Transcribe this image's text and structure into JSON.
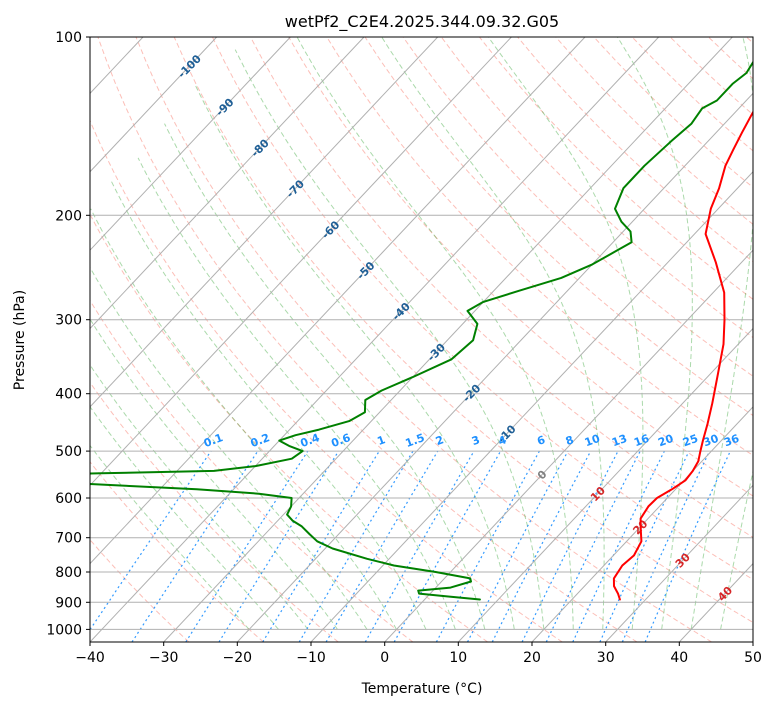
{
  "chart_data": {
    "type": "line",
    "title": "wetPf2_C2E4.2025.344.09.32.G05",
    "xlabel": "Temperature (°C)",
    "ylabel": "Pressure (hPa)",
    "xlim": [
      -40,
      50
    ],
    "ylim": [
      1050,
      100
    ],
    "y_scale": "log",
    "grid": true,
    "x_ticks": [
      "−40",
      "−30",
      "−20",
      "−10",
      "0",
      "10",
      "20",
      "30",
      "40",
      "50"
    ],
    "y_ticks": [
      "1000",
      "900",
      "800",
      "700",
      "600",
      "500",
      "400",
      "300",
      "200",
      "100"
    ],
    "series": [
      {
        "role": "temperature",
        "color": "#ff0000",
        "points": [
          [
            26.5,
            890
          ],
          [
            25.5,
            870
          ],
          [
            24.0,
            845
          ],
          [
            23.0,
            820
          ],
          [
            22.5,
            780
          ],
          [
            22.8,
            750
          ],
          [
            22.0,
            710
          ],
          [
            20.5,
            680
          ],
          [
            19.0,
            650
          ],
          [
            18.5,
            620
          ],
          [
            18.6,
            600
          ],
          [
            19.5,
            580
          ],
          [
            20.2,
            560
          ],
          [
            20.0,
            540
          ],
          [
            19.5,
            520
          ],
          [
            18.5,
            500
          ],
          [
            17.5,
            480
          ],
          [
            16.0,
            450
          ],
          [
            14.0,
            415
          ],
          [
            11.0,
            370
          ],
          [
            8.0,
            330
          ],
          [
            5.0,
            300
          ],
          [
            1.5,
            270
          ],
          [
            -3.5,
            240
          ],
          [
            -8.5,
            215
          ],
          [
            -11.0,
            195
          ],
          [
            -12.5,
            180
          ],
          [
            -14.5,
            165
          ],
          [
            -15.5,
            155
          ],
          [
            -16.5,
            145
          ],
          [
            -17.5,
            135
          ],
          [
            -18.5,
            125
          ],
          [
            -19.5,
            118
          ],
          [
            -20.5,
            110
          ],
          [
            -21.5,
            104
          ],
          [
            -22.0,
            100
          ]
        ]
      },
      {
        "role": "dewpoint",
        "color": "#008000",
        "points": [
          [
            7.5,
            890
          ],
          [
            3.0,
            880
          ],
          [
            -1.5,
            870
          ],
          [
            -2.0,
            860
          ],
          [
            0.0,
            855
          ],
          [
            2.0,
            850
          ],
          [
            4.0,
            830
          ],
          [
            3.5,
            820
          ],
          [
            -2.0,
            800
          ],
          [
            -8.5,
            780
          ],
          [
            -13.0,
            760
          ],
          [
            -19.0,
            730
          ],
          [
            -22.0,
            710
          ],
          [
            -24.0,
            690
          ],
          [
            -26.0,
            670
          ],
          [
            -28.0,
            655
          ],
          [
            -29.5,
            640
          ],
          [
            -30.0,
            620
          ],
          [
            -31.0,
            600
          ],
          [
            -36.0,
            590
          ],
          [
            -45.0,
            580
          ],
          [
            -58.0,
            570
          ],
          [
            -70.0,
            560
          ],
          [
            -75.0,
            550
          ],
          [
            -60.0,
            545
          ],
          [
            -45.0,
            540
          ],
          [
            -40.0,
            530
          ],
          [
            -36.0,
            515
          ],
          [
            -35.5,
            500
          ],
          [
            -38.0,
            490
          ],
          [
            -40.0,
            480
          ],
          [
            -38.5,
            470
          ],
          [
            -36.0,
            460
          ],
          [
            -33.0,
            445
          ],
          [
            -32.0,
            430
          ],
          [
            -33.5,
            410
          ],
          [
            -32.5,
            395
          ],
          [
            -30.0,
            375
          ],
          [
            -27.0,
            350
          ],
          [
            -26.5,
            325
          ],
          [
            -28.0,
            305
          ],
          [
            -31.0,
            290
          ],
          [
            -30.0,
            280
          ],
          [
            -26.5,
            268
          ],
          [
            -22.5,
            255
          ],
          [
            -20.0,
            242
          ],
          [
            -18.5,
            230
          ],
          [
            -17.5,
            222
          ],
          [
            -19.0,
            213
          ],
          [
            -21.5,
            205
          ],
          [
            -24.0,
            195
          ],
          [
            -25.5,
            180
          ],
          [
            -25.5,
            165
          ],
          [
            -25.0,
            150
          ],
          [
            -24.5,
            140
          ],
          [
            -25.0,
            132
          ],
          [
            -24.0,
            128
          ],
          [
            -24.0,
            120
          ],
          [
            -23.5,
            115
          ],
          [
            -24.0,
            110
          ],
          [
            -22.5,
            105
          ],
          [
            -22.0,
            100
          ]
        ]
      }
    ],
    "isotherm_labels": [
      "-100",
      "-90",
      "-80",
      "-70",
      "-60",
      "-50",
      "-40",
      "-30",
      "-20",
      "-10",
      "0",
      "10",
      "20",
      "30",
      "40"
    ],
    "mixing_ratio_labels": [
      "0.1",
      "0.2",
      "0.4",
      "0.6",
      "1",
      "1.5",
      "2",
      "3",
      "4",
      "6",
      "8",
      "10",
      "13",
      "16",
      "20",
      "25",
      "30",
      "36"
    ],
    "colors": {
      "isotherm_cold": "#1f5f96",
      "isotherm_zero": "#808080",
      "isotherm_warm": "#d62728",
      "mixing_ratio": "#1e90ff",
      "dry_adiabat": "#fa8072",
      "moist_adiabat": "#2ca02c",
      "grid": "#b0b0b0"
    }
  }
}
